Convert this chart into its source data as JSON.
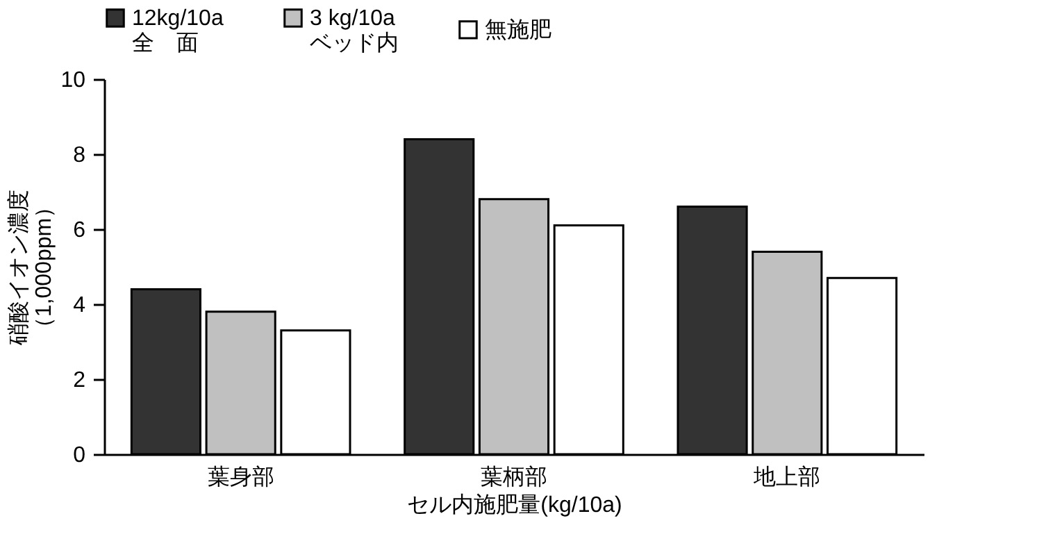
{
  "chart_data": {
    "type": "bar",
    "xlabel": "セル内施肥量(kg/10a)",
    "ylabel": "硝酸イオン濃度（1,000ppm）",
    "categories": [
      "葉身部",
      "葉柄部",
      "地上部"
    ],
    "series": [
      {
        "name": "12kg/10a\n全　面",
        "color": "#333333",
        "values": [
          4.4,
          8.4,
          6.6
        ]
      },
      {
        "name": " 3 kg/10a\nベッド内",
        "color": "#c0c0c0",
        "values": [
          3.8,
          6.8,
          5.4
        ]
      },
      {
        "name": "無施肥",
        "color": "#ffffff",
        "values": [
          3.3,
          6.1,
          4.7
        ]
      }
    ],
    "ylim": [
      0,
      10
    ],
    "yticks": [
      0,
      2,
      4,
      6,
      8,
      10
    ],
    "grid": false,
    "legend": "top"
  }
}
